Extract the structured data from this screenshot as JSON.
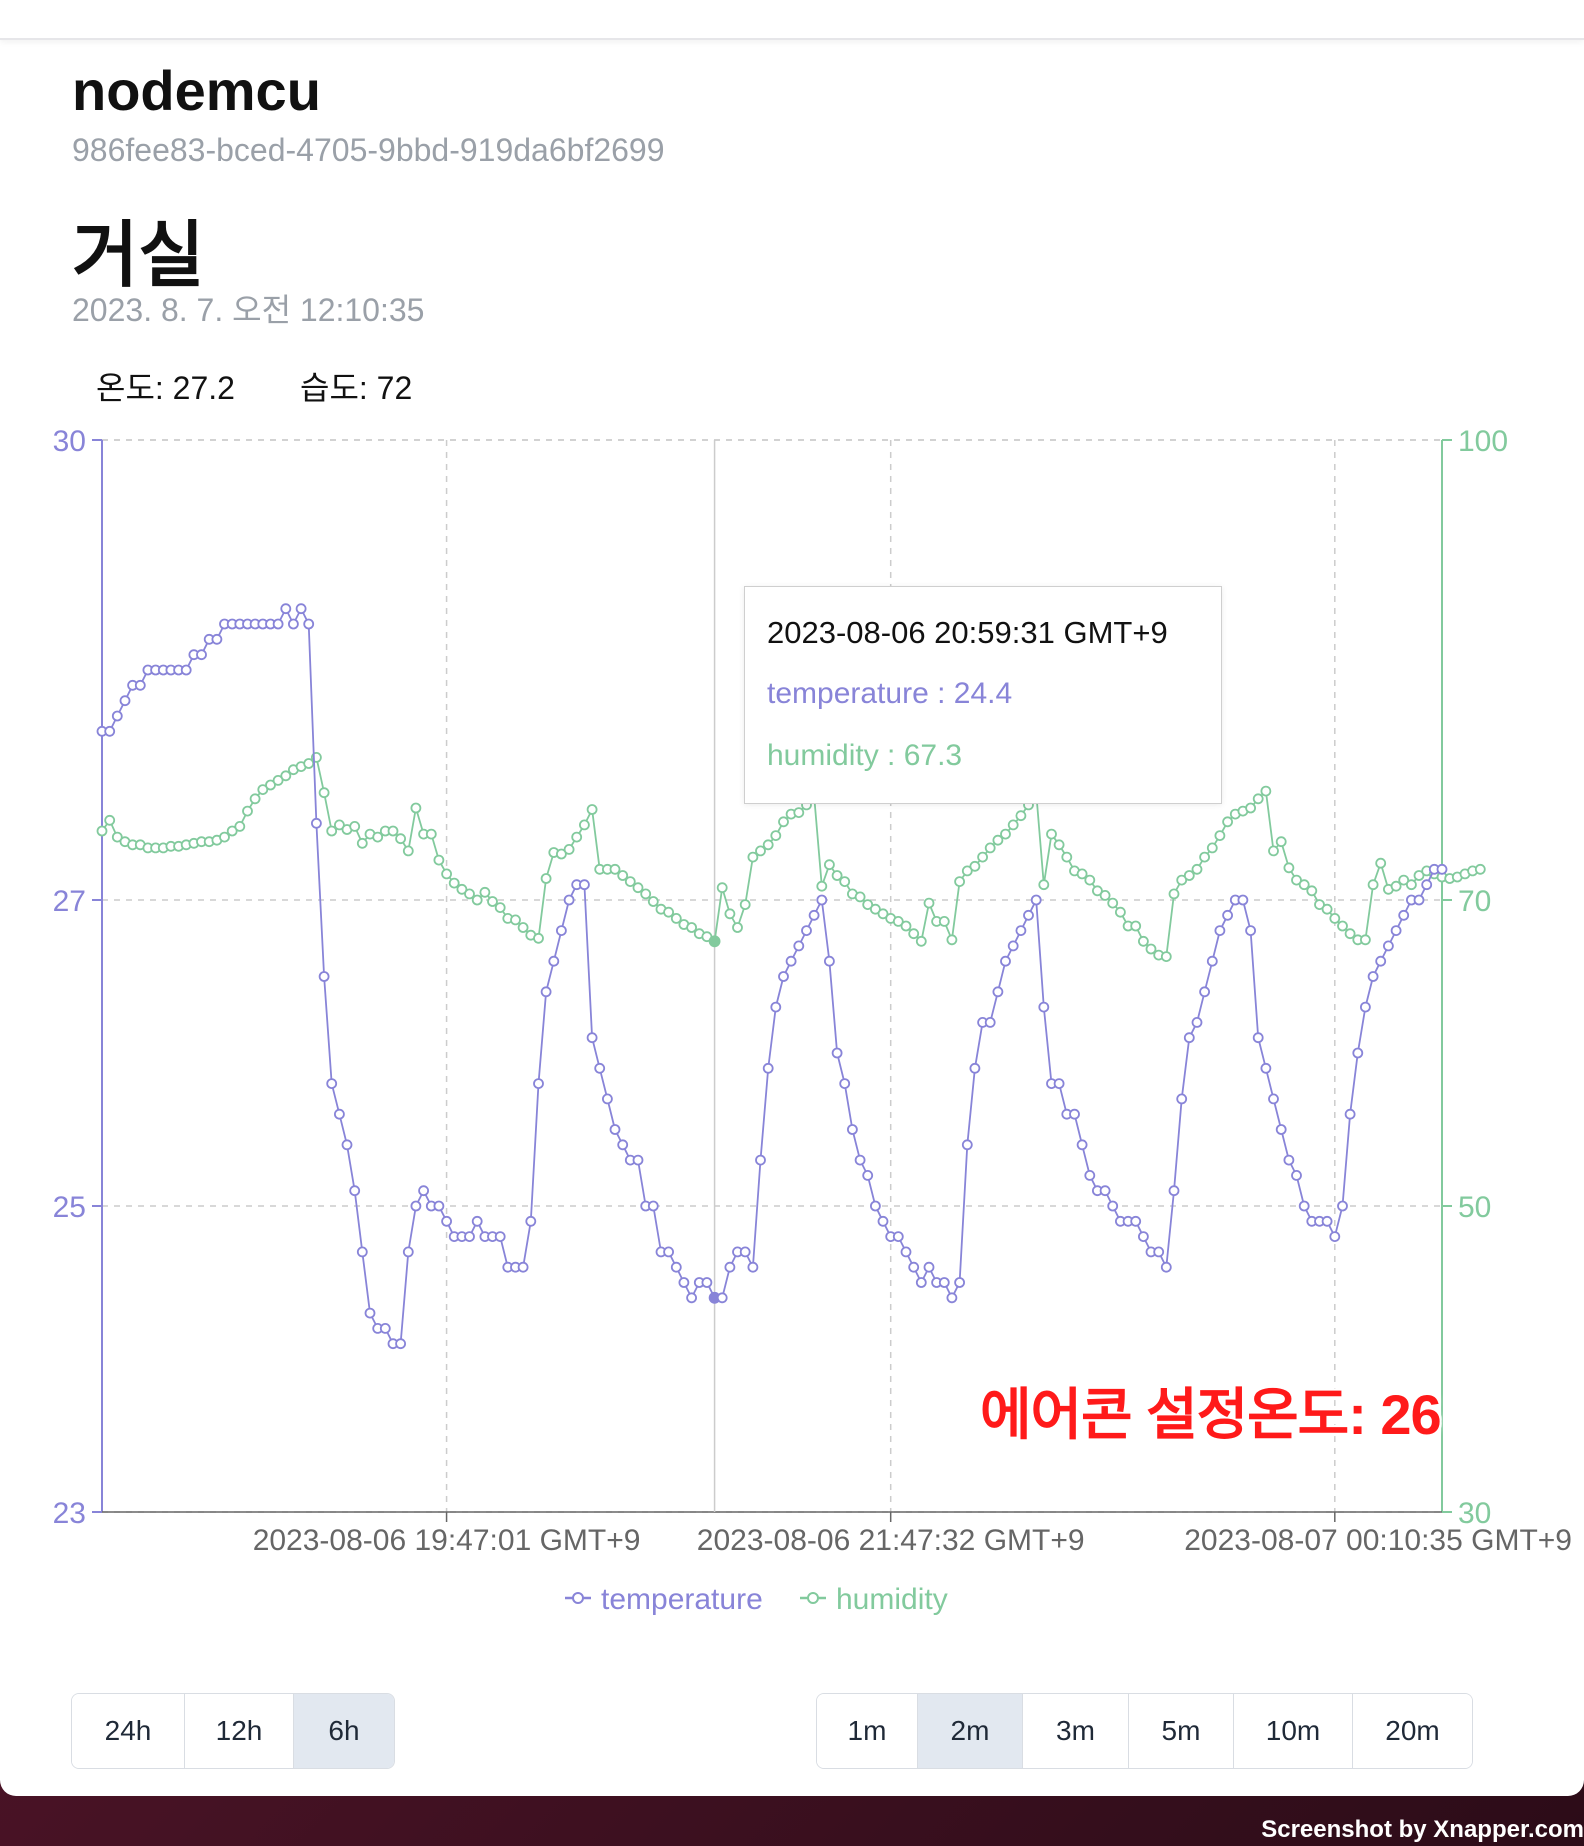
{
  "device": {
    "name": "nodemcu",
    "id": "986fee83-bced-4705-9bbd-919da6bf2699"
  },
  "room": {
    "name": "거실",
    "timestamp": "2023. 8. 7. 오전 12:10:35"
  },
  "readings": {
    "temperature_text": "온도: 27.2",
    "humidity_text": "습도: 72"
  },
  "tooltip": {
    "time": "2023-08-06 20:59:31 GMT+9",
    "temperature": "temperature : 24.4",
    "humidity": "humidity : 67.3"
  },
  "overlay_note": "에어콘 설정온도: 26",
  "range_buttons": [
    {
      "label": "24h",
      "active": false
    },
    {
      "label": "12h",
      "active": false
    },
    {
      "label": "6h",
      "active": true
    }
  ],
  "interval_buttons": [
    {
      "label": "1m",
      "active": false
    },
    {
      "label": "2m",
      "active": true
    },
    {
      "label": "3m",
      "active": false
    },
    {
      "label": "5m",
      "active": false
    },
    {
      "label": "10m",
      "active": false
    },
    {
      "label": "20m",
      "active": false
    }
  ],
  "watermark": "Screenshot by Xnapper.com",
  "colors": {
    "temperature": "#8884d8",
    "humidity": "#82ca9d",
    "grid": "#cccccc",
    "annotation": "#ff1a1a"
  },
  "chart_data": {
    "type": "line",
    "x_ticks": [
      "2023-08-06 19:47:01 GMT+9",
      "2023-08-06 21:47:32 GMT+9",
      "2023-08-07 00:10:35 GMT+9"
    ],
    "x_tick_index": [
      45,
      103,
      161
    ],
    "active_index": 80,
    "y_left": {
      "ticks": [
        23,
        25,
        27,
        30
      ],
      "range": [
        23,
        30
      ]
    },
    "y_right": {
      "ticks": [
        30,
        50,
        70,
        100
      ],
      "range": [
        30,
        100
      ]
    },
    "legend": [
      "temperature",
      "humidity"
    ],
    "series": [
      {
        "name": "temperature",
        "axis": "left",
        "values": [
          28.1,
          28.1,
          28.2,
          28.3,
          28.4,
          28.4,
          28.5,
          28.5,
          28.5,
          28.5,
          28.5,
          28.5,
          28.6,
          28.6,
          28.7,
          28.7,
          28.8,
          28.8,
          28.8,
          28.8,
          28.8,
          28.8,
          28.8,
          28.8,
          28.9,
          28.8,
          28.9,
          28.8,
          27.5,
          26.5,
          25.8,
          25.6,
          25.4,
          25.1,
          24.7,
          24.3,
          24.2,
          24.2,
          24.1,
          24.1,
          24.7,
          25.0,
          25.1,
          25.0,
          25.0,
          24.9,
          24.8,
          24.8,
          24.8,
          24.9,
          24.8,
          24.8,
          24.8,
          24.6,
          24.6,
          24.6,
          24.9,
          25.8,
          26.4,
          26.6,
          26.8,
          27.0,
          27.1,
          27.1,
          26.1,
          25.9,
          25.7,
          25.5,
          25.4,
          25.3,
          25.3,
          25.0,
          25.0,
          24.7,
          24.7,
          24.6,
          24.5,
          24.4,
          24.5,
          24.5,
          24.4,
          24.4,
          24.6,
          24.7,
          24.7,
          24.6,
          25.3,
          25.9,
          26.3,
          26.5,
          26.6,
          26.7,
          26.8,
          26.9,
          27.0,
          26.6,
          26.0,
          25.8,
          25.5,
          25.3,
          25.2,
          25.0,
          24.9,
          24.8,
          24.8,
          24.7,
          24.6,
          24.5,
          24.6,
          24.5,
          24.5,
          24.4,
          24.5,
          25.4,
          25.9,
          26.2,
          26.2,
          26.4,
          26.6,
          26.7,
          26.8,
          26.9,
          27.0,
          26.3,
          25.8,
          25.8,
          25.6,
          25.6,
          25.4,
          25.2,
          25.1,
          25.1,
          25.0,
          24.9,
          24.9,
          24.9,
          24.8,
          24.7,
          24.7,
          24.6,
          25.1,
          25.7,
          26.1,
          26.2,
          26.4,
          26.6,
          26.8,
          26.9,
          27.0,
          27.0,
          26.8,
          26.1,
          25.9,
          25.7,
          25.5,
          25.3,
          25.2,
          25.0,
          24.9,
          24.9,
          24.9,
          24.8,
          25.0,
          25.6,
          26.0,
          26.3,
          26.5,
          26.6,
          26.7,
          26.8,
          26.9,
          27.0,
          27.0,
          27.1,
          27.2,
          27.2
        ]
      },
      {
        "name": "humidity",
        "axis": "right",
        "values": [
          74.5,
          75.2,
          74.1,
          73.8,
          73.6,
          73.6,
          73.4,
          73.4,
          73.4,
          73.5,
          73.5,
          73.6,
          73.7,
          73.8,
          73.8,
          73.9,
          74.1,
          74.5,
          74.8,
          75.8,
          76.6,
          77.2,
          77.5,
          77.8,
          78.1,
          78.5,
          78.7,
          78.9,
          79.3,
          77.0,
          74.5,
          74.9,
          74.6,
          74.8,
          73.7,
          74.3,
          74.1,
          74.5,
          74.5,
          74.0,
          73.2,
          76.0,
          74.3,
          74.3,
          72.6,
          71.7,
          71.1,
          70.7,
          70.4,
          70.0,
          70.5,
          69.9,
          69.5,
          68.8,
          68.7,
          68.2,
          67.7,
          67.5,
          71.4,
          73.1,
          73.0,
          73.3,
          74.1,
          74.9,
          75.9,
          72.0,
          72.0,
          72.0,
          71.6,
          71.2,
          70.8,
          70.4,
          69.9,
          69.4,
          69.2,
          68.8,
          68.4,
          68.2,
          67.8,
          67.6,
          67.3,
          70.8,
          69.1,
          68.2,
          69.7,
          72.8,
          73.2,
          73.6,
          74.2,
          75.1,
          75.6,
          75.7,
          76.2,
          76.8,
          70.9,
          72.3,
          71.6,
          71.2,
          70.4,
          70.2,
          69.7,
          69.4,
          69.1,
          68.8,
          68.6,
          68.3,
          67.8,
          67.3,
          69.8,
          68.6,
          68.6,
          67.4,
          71.2,
          71.9,
          72.2,
          72.8,
          73.4,
          73.9,
          74.3,
          74.9,
          75.5,
          76.2,
          77.0,
          71.0,
          74.3,
          73.6,
          72.8,
          71.9,
          71.7,
          71.3,
          70.6,
          70.3,
          69.8,
          69.2,
          68.3,
          68.3,
          67.3,
          66.8,
          66.4,
          66.3,
          70.4,
          71.3,
          71.6,
          72.0,
          72.8,
          73.4,
          74.2,
          75.1,
          75.6,
          75.8,
          76.0,
          76.6,
          77.1,
          73.2,
          73.8,
          72.1,
          71.3,
          71.0,
          70.6,
          69.7,
          69.4,
          68.8,
          68.3,
          67.8,
          67.4,
          67.4,
          71.0,
          72.4,
          70.7,
          70.9,
          71.3,
          71.0,
          71.6,
          71.9,
          71.7,
          71.5,
          71.4,
          71.5,
          71.7,
          71.9,
          72.0
        ]
      }
    ]
  }
}
